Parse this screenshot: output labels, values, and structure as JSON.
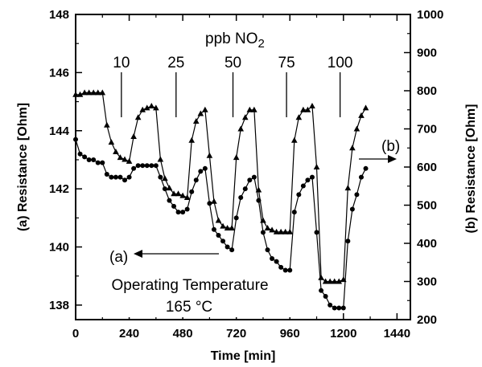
{
  "chart_data": {
    "type": "line",
    "title": "",
    "xlabel": "Time [min]",
    "ylabel_left": "(a) Resistance [Ohm]",
    "ylabel_right": "(b) Resistance [Ohm]",
    "xlim": [
      0,
      1500
    ],
    "x_ticks": [
      0,
      240,
      480,
      720,
      960,
      1200,
      1440
    ],
    "ylim_left": [
      137.5,
      148
    ],
    "y_ticks_left": [
      138,
      140,
      142,
      144,
      146,
      148
    ],
    "ylim_right": [
      200,
      1000
    ],
    "y_ticks_right": [
      200,
      300,
      400,
      500,
      600,
      700,
      800,
      900,
      1000
    ],
    "grid": false,
    "gas_label_prefix": "ppb NO",
    "gas_label_subscript": "2",
    "concentrations": [
      {
        "label": "10",
        "time": 205
      },
      {
        "label": "25",
        "time": 450
      },
      {
        "label": "50",
        "time": 705
      },
      {
        "label": "75",
        "time": 945
      },
      {
        "label": "100",
        "time": 1185
      }
    ],
    "series": [
      {
        "name": "(a)",
        "axis": "left",
        "marker": "circle",
        "x": [
          0,
          20,
          40,
          60,
          80,
          100,
          120,
          140,
          160,
          180,
          200,
          220,
          240,
          260,
          280,
          300,
          320,
          340,
          360,
          380,
          400,
          420,
          440,
          460,
          480,
          500,
          520,
          540,
          560,
          580,
          600,
          620,
          640,
          660,
          680,
          700,
          720,
          740,
          760,
          780,
          800,
          820,
          840,
          860,
          880,
          900,
          920,
          940,
          960,
          980,
          1000,
          1020,
          1040,
          1060,
          1080,
          1100,
          1120,
          1140,
          1160,
          1180,
          1200,
          1220,
          1240,
          1260,
          1280,
          1300
        ],
        "y": [
          143.7,
          143.2,
          143.1,
          143.0,
          143.0,
          142.9,
          142.9,
          142.5,
          142.4,
          142.4,
          142.4,
          142.3,
          142.4,
          142.7,
          142.8,
          142.8,
          142.8,
          142.8,
          142.8,
          142.4,
          142.0,
          141.6,
          141.4,
          141.2,
          141.2,
          141.3,
          141.9,
          142.3,
          142.6,
          142.7,
          141.5,
          140.6,
          140.4,
          140.2,
          140.0,
          139.9,
          141.0,
          141.7,
          142.0,
          142.3,
          142.4,
          141.6,
          140.5,
          139.9,
          139.6,
          139.5,
          139.3,
          139.2,
          139.2,
          141.2,
          141.8,
          142.1,
          142.3,
          142.4,
          140.5,
          138.5,
          138.3,
          138.0,
          137.9,
          137.9,
          137.9,
          140.2,
          141.3,
          141.8,
          142.4,
          142.7
        ]
      },
      {
        "name": "(b)",
        "axis": "right",
        "marker": "triangle",
        "x": [
          0,
          20,
          40,
          60,
          80,
          100,
          120,
          140,
          160,
          180,
          200,
          220,
          240,
          260,
          280,
          300,
          320,
          340,
          360,
          380,
          400,
          420,
          440,
          460,
          480,
          500,
          520,
          540,
          560,
          580,
          600,
          620,
          640,
          660,
          680,
          700,
          720,
          740,
          760,
          780,
          800,
          820,
          840,
          860,
          880,
          900,
          920,
          940,
          960,
          980,
          1000,
          1020,
          1040,
          1060,
          1080,
          1100,
          1120,
          1140,
          1160,
          1180,
          1200,
          1220,
          1240,
          1260,
          1280,
          1300
        ],
        "y": [
          790,
          790,
          795,
          795,
          795,
          795,
          795,
          710,
          665,
          640,
          625,
          620,
          615,
          680,
          730,
          750,
          755,
          760,
          755,
          620,
          570,
          545,
          530,
          530,
          525,
          520,
          670,
          720,
          740,
          750,
          630,
          510,
          460,
          445,
          440,
          440,
          625,
          700,
          730,
          750,
          750,
          540,
          460,
          440,
          435,
          430,
          430,
          430,
          430,
          670,
          730,
          750,
          750,
          760,
          600,
          310,
          300,
          300,
          300,
          300,
          305,
          545,
          650,
          700,
          735,
          755
        ]
      }
    ],
    "annotations": {
      "series_a_label": "(a)",
      "series_b_label": "(b)",
      "operating_temperature_label": "Operating Temperature",
      "operating_temperature_value": "165 °C"
    }
  }
}
